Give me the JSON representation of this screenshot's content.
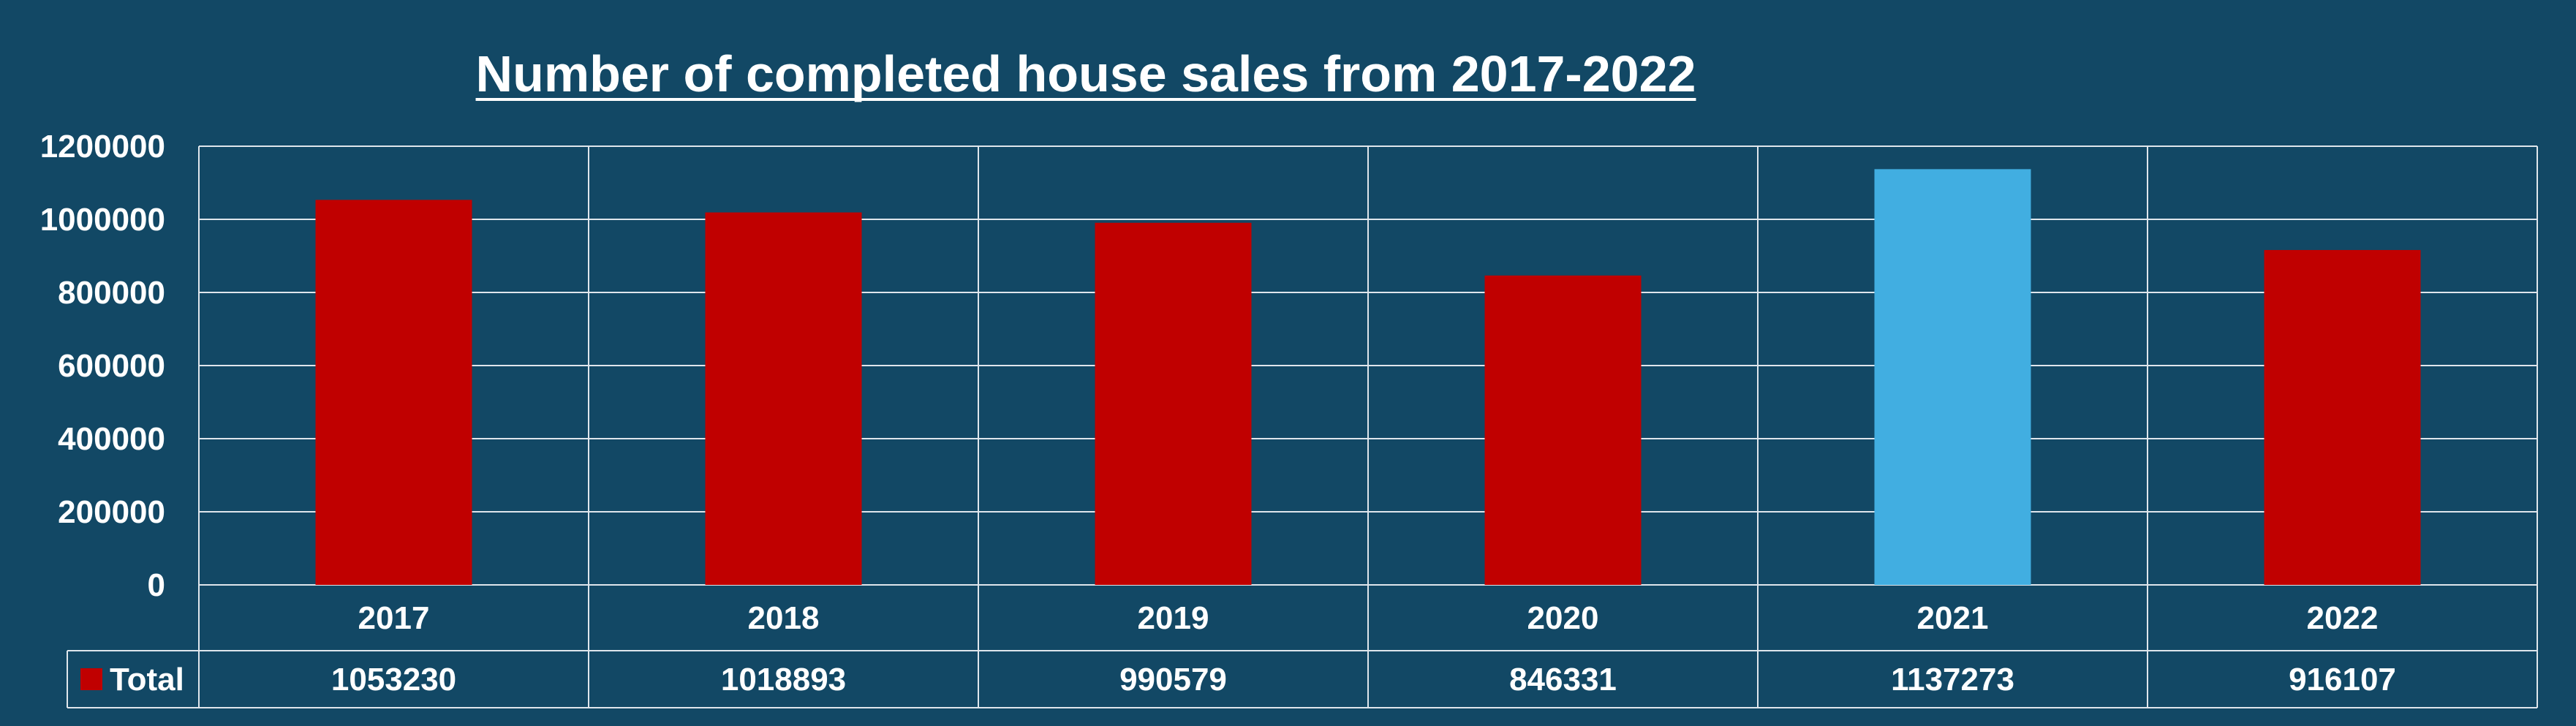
{
  "chart_data": {
    "type": "bar",
    "title": "Number of completed house sales from 2017-2022",
    "categories": [
      "2017",
      "2018",
      "2019",
      "2020",
      "2021",
      "2022"
    ],
    "series": [
      {
        "name": "Total",
        "values": [
          1053230,
          1018893,
          990579,
          846331,
          1137273,
          916107
        ],
        "color": "#c00000"
      }
    ],
    "highlight": {
      "category": "2021",
      "color": "#41aee1"
    },
    "ylim": [
      0,
      1200000
    ],
    "yticks": [
      "0",
      "200000",
      "400000",
      "600000",
      "800000",
      "1000000",
      "1200000"
    ],
    "grid": true,
    "data_table": true,
    "background_color": "#124865",
    "gridline_color": "#dfe6ec",
    "text_color": "#ffffff"
  }
}
